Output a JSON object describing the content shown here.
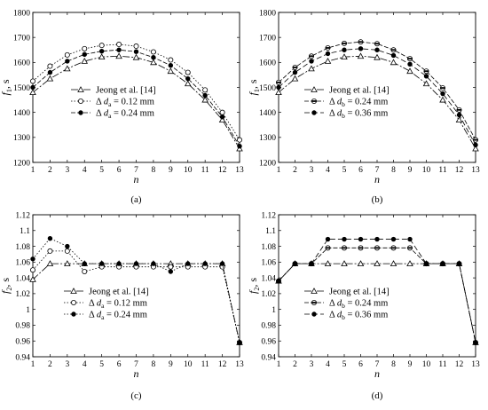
{
  "chart_data": [
    {
      "type": "line",
      "caption": "(a)",
      "xlabel": "n",
      "ylabel": "f1, s",
      "ylabel_main": "f",
      "ylabel_sub": "1",
      "ylabel_suffix": ", s",
      "x": [
        1,
        2,
        3,
        4,
        5,
        6,
        7,
        8,
        9,
        10,
        11,
        12,
        13
      ],
      "xlim": [
        1,
        13
      ],
      "ylim": [
        1200,
        1800
      ],
      "yticks": [
        1200,
        1300,
        1400,
        1500,
        1600,
        1700,
        1800
      ],
      "legend_position": "left-middle",
      "series": [
        {
          "name": "Jeong et al. [14]",
          "legend_text": "Jeong et al. [14]",
          "marker": "triangle",
          "dash": "8 2 2 2",
          "values": [
            1480,
            1535,
            1575,
            1605,
            1622,
            1625,
            1620,
            1600,
            1565,
            1515,
            1450,
            1370,
            1255
          ]
        },
        {
          "name": "Δda = 0.12 mm",
          "legend_prefix": "Δ ",
          "legend_var": "d",
          "legend_sub": "a",
          "legend_suffix": " = 0.12 mm",
          "marker": "circle-open",
          "dash": "1.5 2",
          "values": [
            1525,
            1585,
            1630,
            1655,
            1668,
            1672,
            1665,
            1642,
            1610,
            1560,
            1490,
            1400,
            1290
          ]
        },
        {
          "name": "Δda = 0.24 mm",
          "legend_prefix": "Δ ",
          "legend_var": "d",
          "legend_sub": "a",
          "legend_suffix": " = 0.24 mm",
          "marker": "circle-filled",
          "dash": "5 2",
          "values": [
            1500,
            1560,
            1605,
            1632,
            1645,
            1650,
            1643,
            1620,
            1588,
            1535,
            1468,
            1382,
            1265
          ]
        }
      ]
    },
    {
      "type": "line",
      "caption": "(b)",
      "xlabel": "n",
      "ylabel": "f1, s",
      "ylabel_main": "f",
      "ylabel_sub": "1",
      "ylabel_suffix": ", s",
      "x": [
        1,
        2,
        3,
        4,
        5,
        6,
        7,
        8,
        9,
        10,
        11,
        12,
        13
      ],
      "xlim": [
        1,
        13
      ],
      "ylim": [
        1200,
        1800
      ],
      "yticks": [
        1200,
        1300,
        1400,
        1500,
        1600,
        1700,
        1800
      ],
      "legend_position": "left-middle",
      "series": [
        {
          "name": "Jeong et al. [14]",
          "legend_text": "Jeong et al. [14]",
          "marker": "triangle",
          "dash": "8 2 2 2",
          "values": [
            1480,
            1535,
            1575,
            1605,
            1622,
            1625,
            1620,
            1600,
            1565,
            1515,
            1450,
            1370,
            1255
          ]
        },
        {
          "name": "Δdb = 0.24 mm",
          "legend_prefix": "Δ ",
          "legend_var": "d",
          "legend_sub": "b",
          "legend_suffix": " = 0.24 mm",
          "marker": "half-circle",
          "dash": "5 2",
          "values": [
            1520,
            1580,
            1625,
            1658,
            1676,
            1682,
            1675,
            1650,
            1615,
            1565,
            1498,
            1410,
            1290
          ]
        },
        {
          "name": "Δdb = 0.36 mm",
          "legend_prefix": "Δ ",
          "legend_var": "d",
          "legend_sub": "b",
          "legend_suffix": " = 0.36 mm",
          "marker": "circle-filled",
          "dash": "6 3",
          "values": [
            1500,
            1560,
            1605,
            1635,
            1650,
            1655,
            1650,
            1628,
            1593,
            1545,
            1475,
            1390,
            1270
          ]
        }
      ]
    },
    {
      "type": "line",
      "caption": "(c)",
      "xlabel": "n",
      "ylabel": "f2, s",
      "ylabel_main": "f",
      "ylabel_sub": "2",
      "ylabel_suffix": ", s",
      "x": [
        1,
        2,
        3,
        4,
        5,
        6,
        7,
        8,
        9,
        10,
        11,
        12,
        13
      ],
      "xlim": [
        1,
        13
      ],
      "ylim": [
        0.94,
        1.12
      ],
      "yticks": [
        0.94,
        0.96,
        0.98,
        1.0,
        1.02,
        1.04,
        1.06,
        1.08,
        1.1,
        1.12
      ],
      "ytick_labels": [
        "0.94",
        "0.96",
        "0.98",
        "1",
        "1.02",
        "1.04",
        "1.06",
        "1.08",
        "1.1",
        "1.12"
      ],
      "legend_position": "bottom-left",
      "series": [
        {
          "name": "Jeong et al. [14]",
          "legend_text": "Jeong et al. [14]",
          "marker": "triangle",
          "dash": "8 2 2 2",
          "values": [
            1.038,
            1.058,
            1.058,
            1.058,
            1.058,
            1.058,
            1.058,
            1.058,
            1.058,
            1.058,
            1.058,
            1.058,
            0.958
          ]
        },
        {
          "name": "Δda = 0.12 mm",
          "legend_prefix": "Δ ",
          "legend_var": "d",
          "legend_sub": "a",
          "legend_suffix": " = 0.12 mm",
          "marker": "circle-open",
          "dash": "1.5 2",
          "values": [
            1.05,
            1.074,
            1.074,
            1.048,
            1.054,
            1.054,
            1.054,
            1.054,
            1.054,
            1.054,
            1.054,
            1.054,
            0.958
          ]
        },
        {
          "name": "Δda = 0.24 mm",
          "legend_prefix": "Δ ",
          "legend_var": "d",
          "legend_sub": "a",
          "legend_suffix": " = 0.24 mm",
          "marker": "circle-filled",
          "dash": "1.5 2",
          "values": [
            1.064,
            1.09,
            1.08,
            1.058,
            1.058,
            1.058,
            1.058,
            1.058,
            1.048,
            1.058,
            1.058,
            1.058,
            0.958
          ]
        }
      ]
    },
    {
      "type": "line",
      "caption": "(d)",
      "xlabel": "n",
      "ylabel": "f2, s",
      "ylabel_main": "f",
      "ylabel_sub": "2",
      "ylabel_suffix": ", s",
      "x": [
        1,
        2,
        3,
        4,
        5,
        6,
        7,
        8,
        9,
        10,
        11,
        12,
        13
      ],
      "xlim": [
        1,
        13
      ],
      "ylim": [
        0.94,
        1.12
      ],
      "yticks": [
        0.94,
        0.96,
        0.98,
        1.0,
        1.02,
        1.04,
        1.06,
        1.08,
        1.1,
        1.12
      ],
      "ytick_labels": [
        "0.94",
        "0.96",
        "0.98",
        "1",
        "1.02",
        "1.04",
        "1.06",
        "1.08",
        "1.1",
        "1.12"
      ],
      "legend_position": "bottom-left",
      "series": [
        {
          "name": "Jeong et al. [14]",
          "legend_text": "Jeong et al. [14]",
          "marker": "triangle",
          "dash": "8 2 2 2",
          "values": [
            1.036,
            1.058,
            1.058,
            1.058,
            1.058,
            1.058,
            1.058,
            1.058,
            1.058,
            1.058,
            1.058,
            1.058,
            0.958
          ]
        },
        {
          "name": "Δdb = 0.24 mm",
          "legend_prefix": "Δ ",
          "legend_var": "d",
          "legend_sub": "b",
          "legend_suffix": " = 0.24 mm",
          "marker": "half-circle",
          "dash": "5 2",
          "values": [
            1.036,
            1.058,
            1.058,
            1.078,
            1.078,
            1.078,
            1.078,
            1.078,
            1.078,
            1.058,
            1.058,
            1.058,
            0.958
          ]
        },
        {
          "name": "Δdb = 0.36 mm",
          "legend_prefix": "Δ ",
          "legend_var": "d",
          "legend_sub": "b",
          "legend_suffix": " = 0.36 mm",
          "marker": "circle-filled",
          "dash": "6 3",
          "values": [
            1.036,
            1.058,
            1.058,
            1.089,
            1.089,
            1.089,
            1.089,
            1.089,
            1.089,
            1.058,
            1.058,
            1.058,
            0.958
          ]
        }
      ]
    }
  ]
}
